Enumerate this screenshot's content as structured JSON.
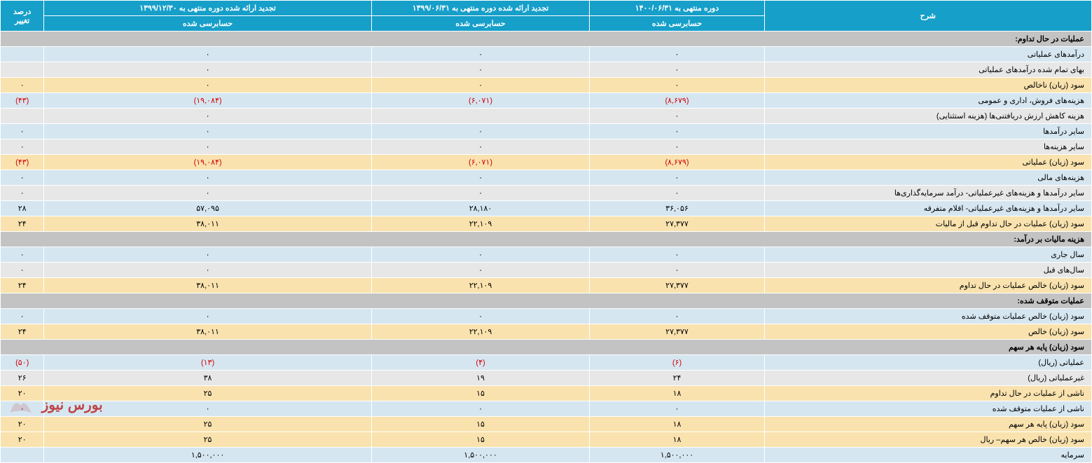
{
  "headers": {
    "desc": "شرح",
    "p1": "دوره منتهی به ۱۴۰۰/۰۶/۳۱",
    "p2": "تجدید ارائه شده دوره منتهی به ۱۳۹۹/۰۶/۳۱",
    "p3": "تجدید ارائه شده دوره منتهی به ۱۳۹۹/۱۲/۳۰",
    "pct": "درصد تغییر",
    "audited": "حسابرسی شده"
  },
  "rows": [
    {
      "t": "section",
      "desc": "عملیات در حال تداوم:"
    },
    {
      "t": "blue",
      "desc": "درآمدهای عملیاتی",
      "v1": "۰",
      "v2": "۰",
      "v3": "۰",
      "pct": ""
    },
    {
      "t": "grey",
      "desc": "بهای تمام شده درآمدهای عملیاتی",
      "v1": "۰",
      "v2": "۰",
      "v3": "۰",
      "pct": ""
    },
    {
      "t": "yellow",
      "desc": "سود (زیان) ناخالص",
      "v1": "۰",
      "v2": "۰",
      "v3": "۰",
      "pct": "۰"
    },
    {
      "t": "blue",
      "desc": "هزینه‌های فروش، اداری و عمومی",
      "v1": "(۸,۶۷۹)",
      "v2": "(۶,۰۷۱)",
      "v3": "(۱۹,۰۸۴)",
      "pct": "(۴۳)",
      "neg": true
    },
    {
      "t": "grey",
      "desc": "هزینه کاهش ارزش دریافتنی‌ها (هزینه استثنایی)",
      "v1": "۰",
      "v2": "",
      "v3": "۰",
      "pct": ""
    },
    {
      "t": "blue",
      "desc": "سایر درآمدها",
      "v1": "۰",
      "v2": "۰",
      "v3": "۰",
      "pct": "۰"
    },
    {
      "t": "grey",
      "desc": "سایر هزینه‌ها",
      "v1": "۰",
      "v2": "۰",
      "v3": "۰",
      "pct": "۰"
    },
    {
      "t": "yellow",
      "desc": "سود (زیان) عملیاتی",
      "v1": "(۸,۶۷۹)",
      "v2": "(۶,۰۷۱)",
      "v3": "(۱۹,۰۸۴)",
      "pct": "(۴۳)",
      "neg": true
    },
    {
      "t": "blue",
      "desc": "هزینه‌های مالی",
      "v1": "۰",
      "v2": "۰",
      "v3": "۰",
      "pct": "۰"
    },
    {
      "t": "grey",
      "desc": "سایر درآمدها و هزینه‌های غیرعملیاتی- درآمد سرمایه‌گذاری‌ها",
      "v1": "۰",
      "v2": "۰",
      "v3": "۰",
      "pct": "۰"
    },
    {
      "t": "blue",
      "desc": "سایر درآمدها و هزینه‌های غیرعملیاتی- اقلام متفرقه",
      "v1": "۳۶,۰۵۶",
      "v2": "۲۸,۱۸۰",
      "v3": "۵۷,۰۹۵",
      "pct": "۲۸"
    },
    {
      "t": "yellow",
      "desc": "سود (زیان) عملیات در حال تداوم قبل از مالیات",
      "v1": "۲۷,۳۷۷",
      "v2": "۲۲,۱۰۹",
      "v3": "۳۸,۰۱۱",
      "pct": "۲۴"
    },
    {
      "t": "section",
      "desc": "هزینه مالیات بر درآمد:"
    },
    {
      "t": "blue",
      "desc": "سال جاری",
      "v1": "۰",
      "v2": "۰",
      "v3": "۰",
      "pct": "۰"
    },
    {
      "t": "grey",
      "desc": "سال‌های قبل",
      "v1": "۰",
      "v2": "۰",
      "v3": "۰",
      "pct": "۰"
    },
    {
      "t": "yellow",
      "desc": "سود (زیان) خالص عملیات در حال تداوم",
      "v1": "۲۷,۳۷۷",
      "v2": "۲۲,۱۰۹",
      "v3": "۳۸,۰۱۱",
      "pct": "۲۴"
    },
    {
      "t": "section",
      "desc": "عملیات متوقف شده:"
    },
    {
      "t": "blue",
      "desc": "سود (زیان) خالص عملیات متوقف شده",
      "v1": "۰",
      "v2": "۰",
      "v3": "۰",
      "pct": "۰"
    },
    {
      "t": "yellow",
      "desc": "سود (زیان) خالص",
      "v1": "۲۷,۳۷۷",
      "v2": "۲۲,۱۰۹",
      "v3": "۳۸,۰۱۱",
      "pct": "۲۴"
    },
    {
      "t": "section",
      "desc": "سود (زیان) پایه هر سهم"
    },
    {
      "t": "blue",
      "desc": "عملیاتی (ریال)",
      "v1": "(۶)",
      "v2": "(۴)",
      "v3": "(۱۳)",
      "pct": "(۵۰)",
      "neg": true
    },
    {
      "t": "grey",
      "desc": "غیرعملیاتی (ریال)",
      "v1": "۲۴",
      "v2": "۱۹",
      "v3": "۳۸",
      "pct": "۲۶"
    },
    {
      "t": "yellow",
      "desc": "ناشی از عملیات در حال تداوم",
      "v1": "۱۸",
      "v2": "۱۵",
      "v3": "۲۵",
      "pct": "۲۰"
    },
    {
      "t": "blue",
      "desc": "ناشی از عملیات متوقف شده",
      "v1": "۰",
      "v2": "۰",
      "v3": "۰",
      "pct": "۰"
    },
    {
      "t": "yellow",
      "desc": "سود (زیان) پایه هر سهم",
      "v1": "۱۸",
      "v2": "۱۵",
      "v3": "۲۵",
      "pct": "۲۰"
    },
    {
      "t": "yellow",
      "desc": "سود (زیان) خالص هر سهم– ریال",
      "v1": "۱۸",
      "v2": "۱۵",
      "v3": "۲۵",
      "pct": "۲۰"
    },
    {
      "t": "blue",
      "desc": "سرمایه",
      "v1": "۱,۵۰۰,۰۰۰",
      "v2": "۱,۵۰۰,۰۰۰",
      "v3": "۱,۵۰۰,۰۰۰",
      "pct": ""
    }
  ],
  "watermark": "بورس نیوز"
}
